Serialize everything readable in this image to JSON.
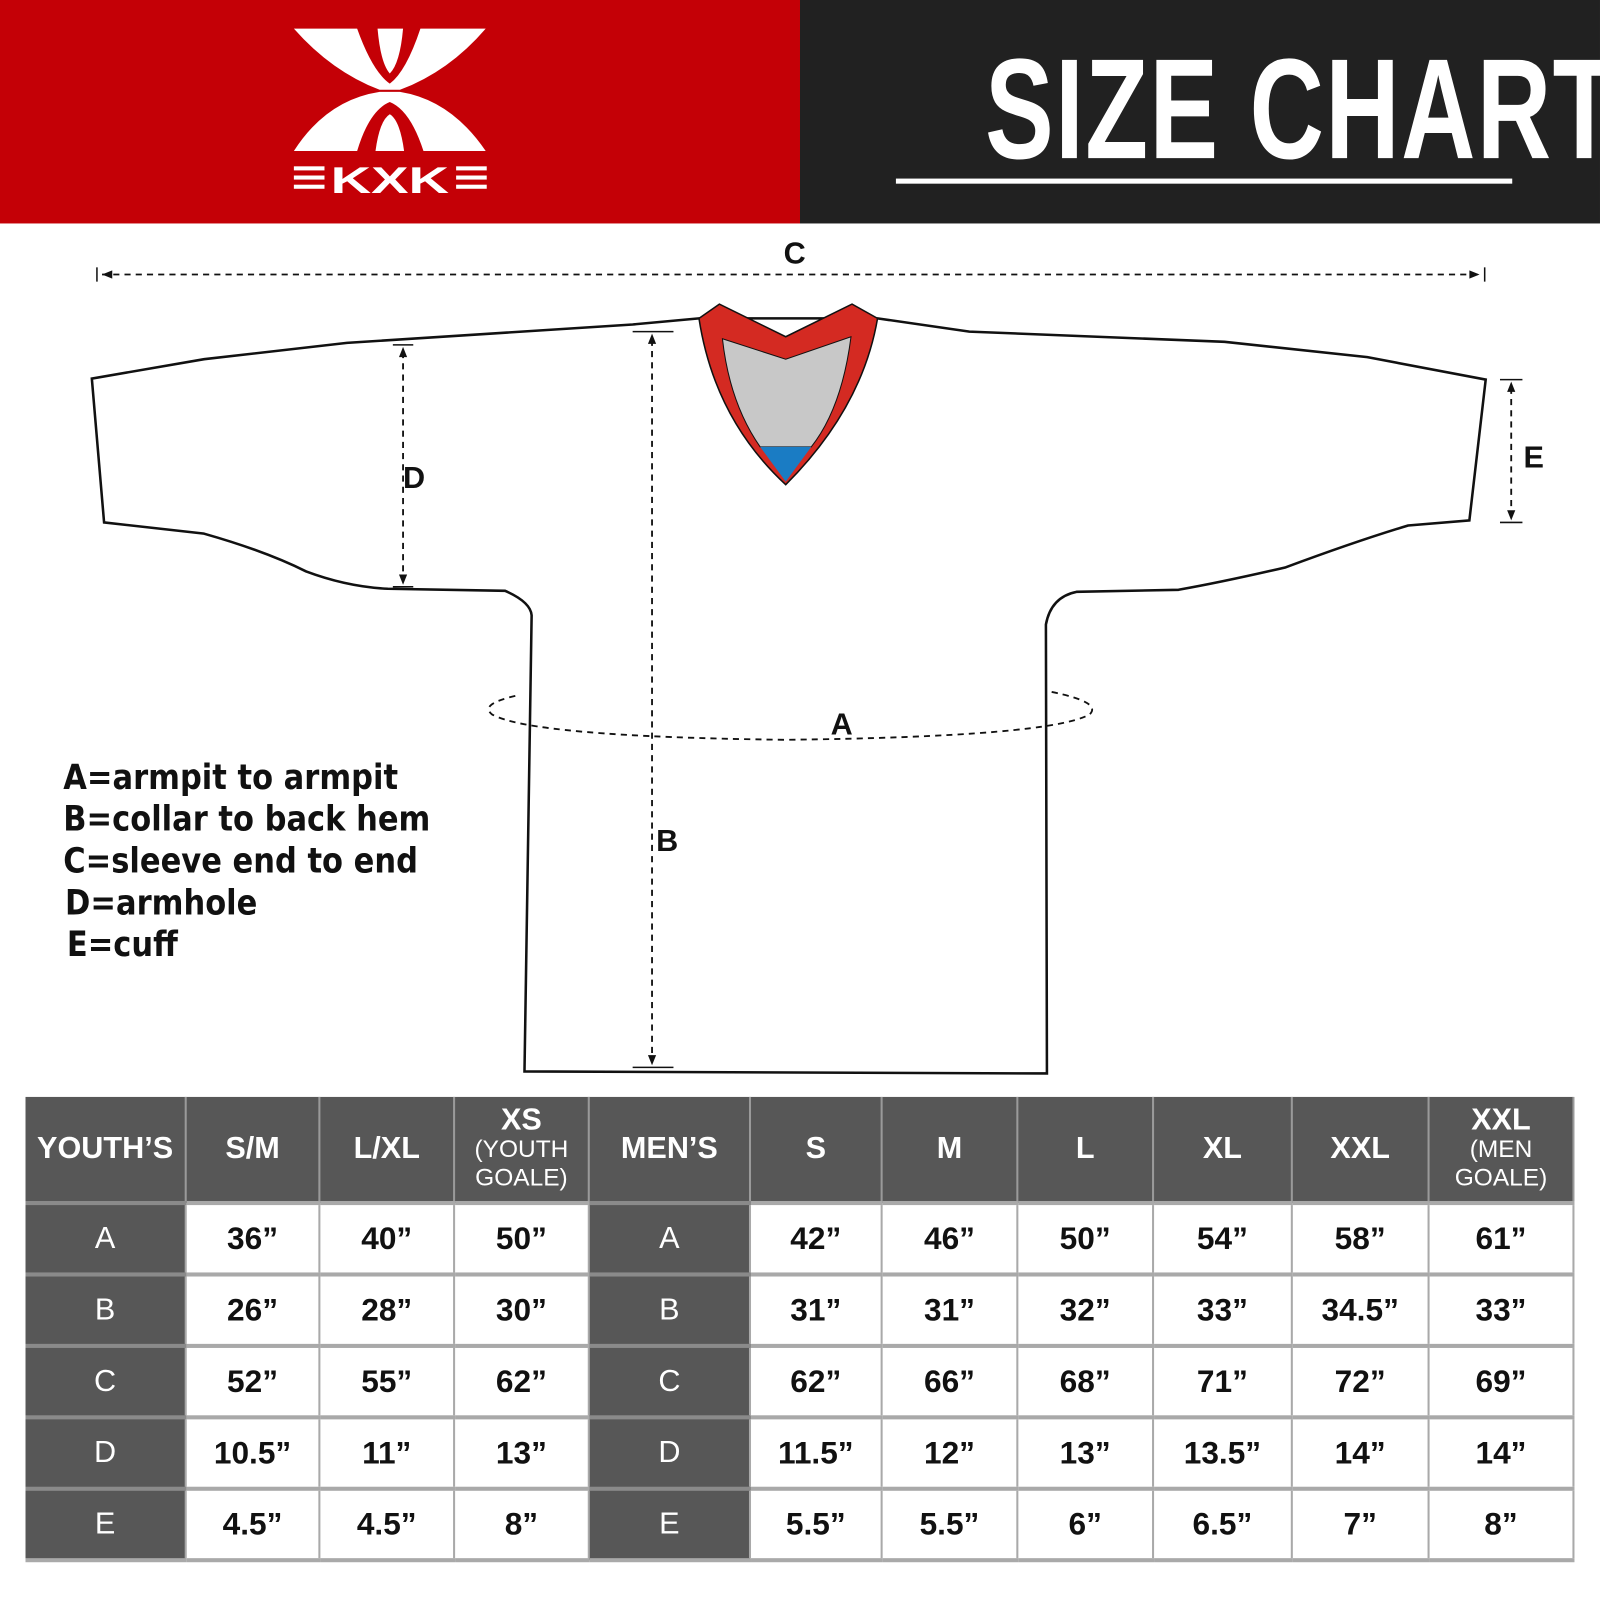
{
  "brand": {
    "logo_text": "KXK",
    "red": "#c40006",
    "dark": "#212121"
  },
  "header": {
    "title": "SIZE CHART"
  },
  "diagram": {
    "labels": {
      "A": "A",
      "B": "B",
      "C": "C",
      "D": "D",
      "E": "E"
    },
    "collar_colors": {
      "trim": "#d42a22",
      "inner": "#c8c8c8",
      "tag": "#1a7cc4"
    }
  },
  "legend": [
    "A=armpit to armpit",
    "B=collar to back hem",
    "C=sleeve end to end",
    "D=armhole",
    "E=cuff"
  ],
  "table": {
    "youth_header": "YOUTH’S",
    "youth_sizes": [
      {
        "main": "S/M",
        "sub": ""
      },
      {
        "main": "L/XL",
        "sub": ""
      },
      {
        "main": "XS",
        "sub": "(YOUTH GOALE)"
      }
    ],
    "men_header": "MEN’S",
    "men_sizes": [
      {
        "main": "S",
        "sub": ""
      },
      {
        "main": "M",
        "sub": ""
      },
      {
        "main": "L",
        "sub": ""
      },
      {
        "main": "XL",
        "sub": ""
      },
      {
        "main": "XXL",
        "sub": ""
      },
      {
        "main": "XXL",
        "sub": "(MEN GOALE)"
      }
    ],
    "rows": [
      {
        "label": "A",
        "youth": [
          "36”",
          "40”",
          "50”"
        ],
        "men": [
          "42”",
          "46”",
          "50”",
          "54”",
          "58”",
          "61”"
        ]
      },
      {
        "label": "B",
        "youth": [
          "26”",
          "28”",
          "30”"
        ],
        "men": [
          "31”",
          "31”",
          "32”",
          "33”",
          "34.5”",
          "33”"
        ]
      },
      {
        "label": "C",
        "youth": [
          "52”",
          "55”",
          "62”"
        ],
        "men": [
          "62”",
          "66”",
          "68”",
          "71”",
          "72”",
          "69”"
        ]
      },
      {
        "label": "D",
        "youth": [
          "10.5”",
          "11”",
          "13”"
        ],
        "men": [
          "11.5”",
          "12”",
          "13”",
          "13.5”",
          "14”",
          "14”"
        ]
      },
      {
        "label": "E",
        "youth": [
          "4.5”",
          "4.5”",
          "8”"
        ],
        "men": [
          "5.5”",
          "5.5”",
          "6”",
          "6.5”",
          "7”",
          "8”"
        ]
      }
    ]
  }
}
